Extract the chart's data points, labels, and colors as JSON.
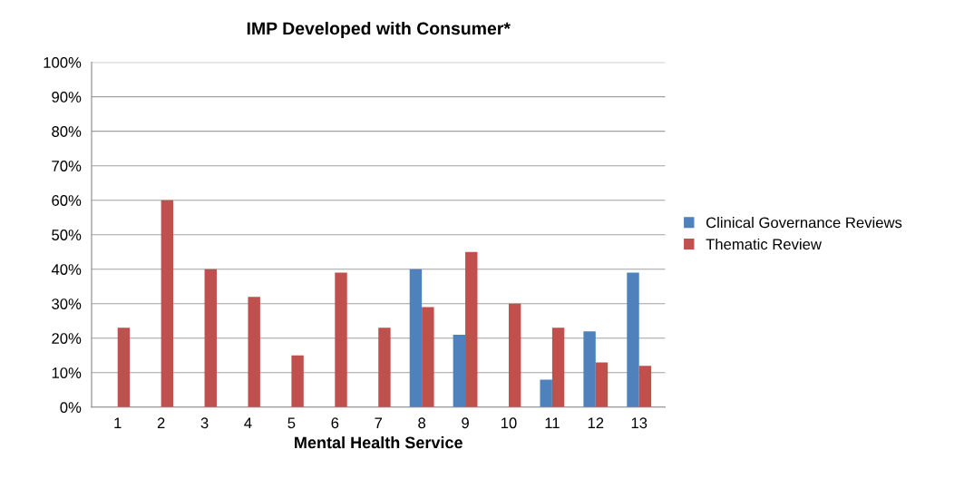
{
  "chart_data": {
    "type": "bar",
    "title": "IMP Developed with Consumer*",
    "xlabel": "Mental Health Service",
    "categories": [
      "1",
      "2",
      "3",
      "4",
      "5",
      "6",
      "7",
      "8",
      "9",
      "10",
      "11",
      "12",
      "13"
    ],
    "series": [
      {
        "name": "Clinical Governance Reviews",
        "color": "#4f81bd",
        "values": [
          null,
          null,
          null,
          null,
          null,
          null,
          null,
          40,
          21,
          null,
          8,
          22,
          39
        ]
      },
      {
        "name": "Thematic Review",
        "color": "#c0504d",
        "values": [
          23,
          60,
          40,
          32,
          15,
          39,
          23,
          29,
          45,
          30,
          23,
          13,
          12
        ]
      }
    ],
    "ylim": [
      0,
      100
    ],
    "yticks": [
      {
        "value": 0,
        "label": "0%"
      },
      {
        "value": 10,
        "label": "10%"
      },
      {
        "value": 20,
        "label": "20%"
      },
      {
        "value": 30,
        "label": "30%"
      },
      {
        "value": 40,
        "label": "40%"
      },
      {
        "value": 50,
        "label": "50%"
      },
      {
        "value": 60,
        "label": "60%"
      },
      {
        "value": 70,
        "label": "70%"
      },
      {
        "value": 80,
        "label": "80%"
      },
      {
        "value": 90,
        "label": "90%"
      },
      {
        "value": 100,
        "label": "100%"
      }
    ],
    "grid": "y",
    "legend": "right"
  }
}
